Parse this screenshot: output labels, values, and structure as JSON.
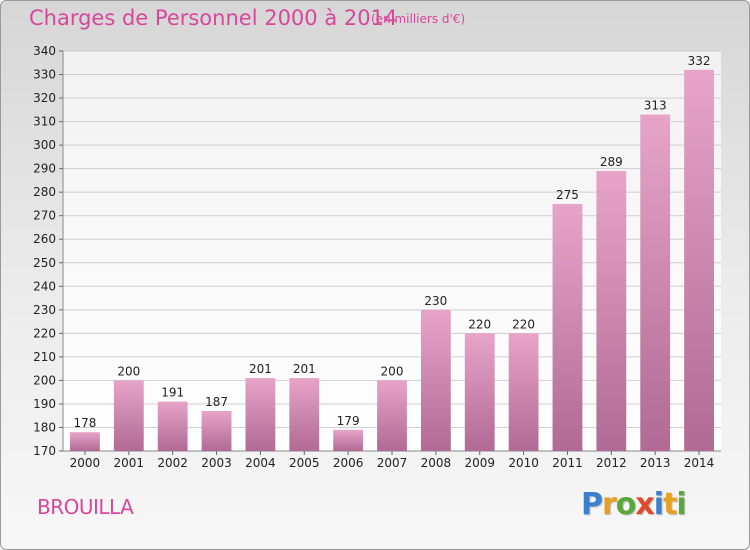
{
  "chart_data": {
    "type": "bar",
    "title": "Charges de Personnel 2000 à 2014",
    "subtitle": "(en milliers d'€)",
    "categories": [
      "2000",
      "2001",
      "2002",
      "2003",
      "2004",
      "2005",
      "2006",
      "2007",
      "2008",
      "2009",
      "2010",
      "2011",
      "2012",
      "2013",
      "2014"
    ],
    "values": [
      178,
      200,
      191,
      187,
      201,
      201,
      179,
      200,
      230,
      220,
      220,
      275,
      289,
      313,
      332
    ],
    "ylim": [
      170,
      340
    ],
    "yticks": [
      170,
      180,
      190,
      200,
      210,
      220,
      230,
      240,
      250,
      260,
      270,
      280,
      290,
      300,
      310,
      320,
      330,
      340
    ],
    "grid": true,
    "bar_color_top": "#e7a4c8",
    "bar_color_bottom": "#b06a95"
  },
  "footer": {
    "place": "BROUILLA"
  },
  "logo": {
    "text": "Proxiti",
    "letters": [
      {
        "ch": "P",
        "color": "#3a7fd0"
      },
      {
        "ch": "r",
        "color": "#e8a020"
      },
      {
        "ch": "o",
        "color": "#58a83a"
      },
      {
        "ch": "x",
        "color": "#e04a2a"
      },
      {
        "ch": "i",
        "color": "#3a7fd0"
      },
      {
        "ch": "t",
        "color": "#e8a020"
      },
      {
        "ch": "i",
        "color": "#58a83a"
      }
    ]
  }
}
